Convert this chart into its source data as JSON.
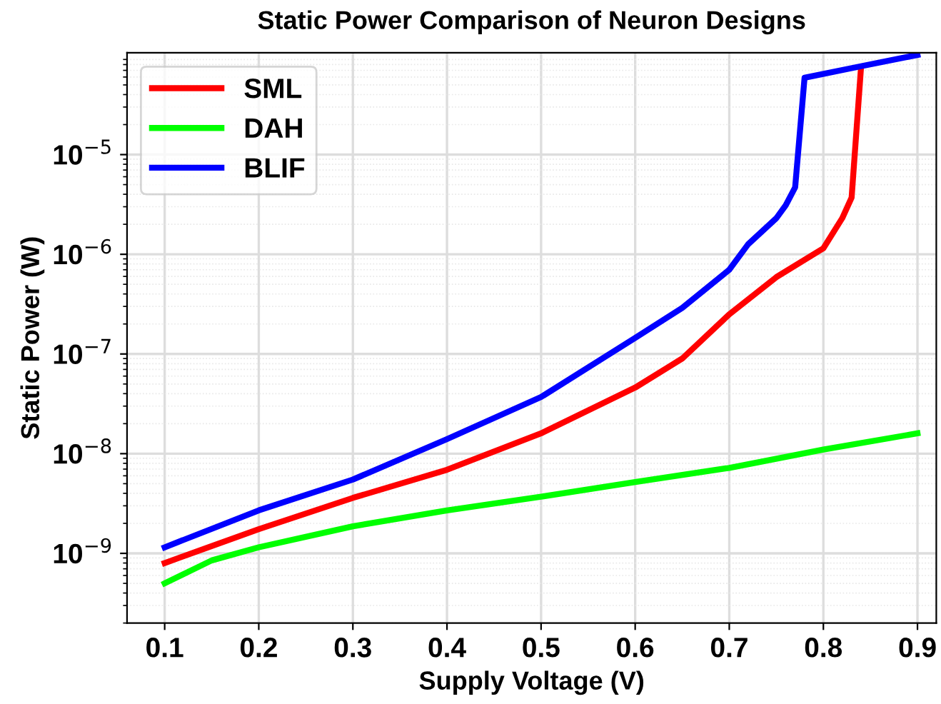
{
  "chart_data": {
    "type": "line",
    "title": "Static Power Comparison of Neuron Designs",
    "xlabel": "Supply Voltage (V)",
    "ylabel": "Static Power (W)",
    "log": "y",
    "grid": true,
    "legend": "top left",
    "marker": "none",
    "line_style": "solid",
    "xlim": [
      0.06,
      0.92
    ],
    "xticks": [
      0.1,
      0.2,
      0.3,
      0.4,
      0.5,
      0.6,
      0.7,
      0.8,
      0.9
    ],
    "ylim": [
      2e-10,
      0.000105
    ],
    "yticks": [
      {
        "value": 1e-09,
        "label": "10$^{−9}$"
      },
      {
        "value": 1e-08,
        "label": "10$^{−8}$"
      },
      {
        "value": 1e-07,
        "label": "10$^{−7}$"
      },
      {
        "value": 1e-06,
        "label": "10$^{−6}$"
      },
      {
        "value": 1e-05,
        "label": "10$^{−5}$"
      }
    ],
    "series": [
      {
        "name": "SML",
        "color": "#ff0000",
        "x": [
          0.1,
          0.2,
          0.3,
          0.4,
          0.5,
          0.6,
          0.65,
          0.7,
          0.75,
          0.8,
          0.82,
          0.83,
          0.84
        ],
        "values": [
          8e-10,
          1.75e-09,
          3.6e-09,
          6.9e-09,
          1.6e-08,
          4.6e-08,
          9e-08,
          2.5e-07,
          5.9e-07,
          1.15e-06,
          2.3e-06,
          3.7e-06,
          7.5e-05
        ]
      },
      {
        "name": "DAH",
        "color": "#00ff00",
        "x": [
          0.1,
          0.15,
          0.2,
          0.3,
          0.4,
          0.5,
          0.6,
          0.7,
          0.8,
          0.9
        ],
        "values": [
          5e-10,
          8.5e-10,
          1.15e-09,
          1.87e-09,
          2.7e-09,
          3.7e-09,
          5.2e-09,
          7.2e-09,
          1.1e-08,
          1.6e-08
        ]
      },
      {
        "name": "BLIF",
        "color": "#0000ff",
        "x": [
          0.1,
          0.2,
          0.3,
          0.4,
          0.5,
          0.6,
          0.65,
          0.7,
          0.72,
          0.75,
          0.76,
          0.77,
          0.78,
          0.84,
          0.9
        ],
        "values": [
          1.15e-09,
          2.7e-09,
          5.5e-09,
          1.4e-08,
          3.7e-08,
          1.45e-07,
          2.9e-07,
          7e-07,
          1.26e-06,
          2.3e-06,
          3.1e-06,
          4.7e-06,
          5.9e-05,
          7.7e-05,
          0.0001
        ]
      }
    ]
  }
}
